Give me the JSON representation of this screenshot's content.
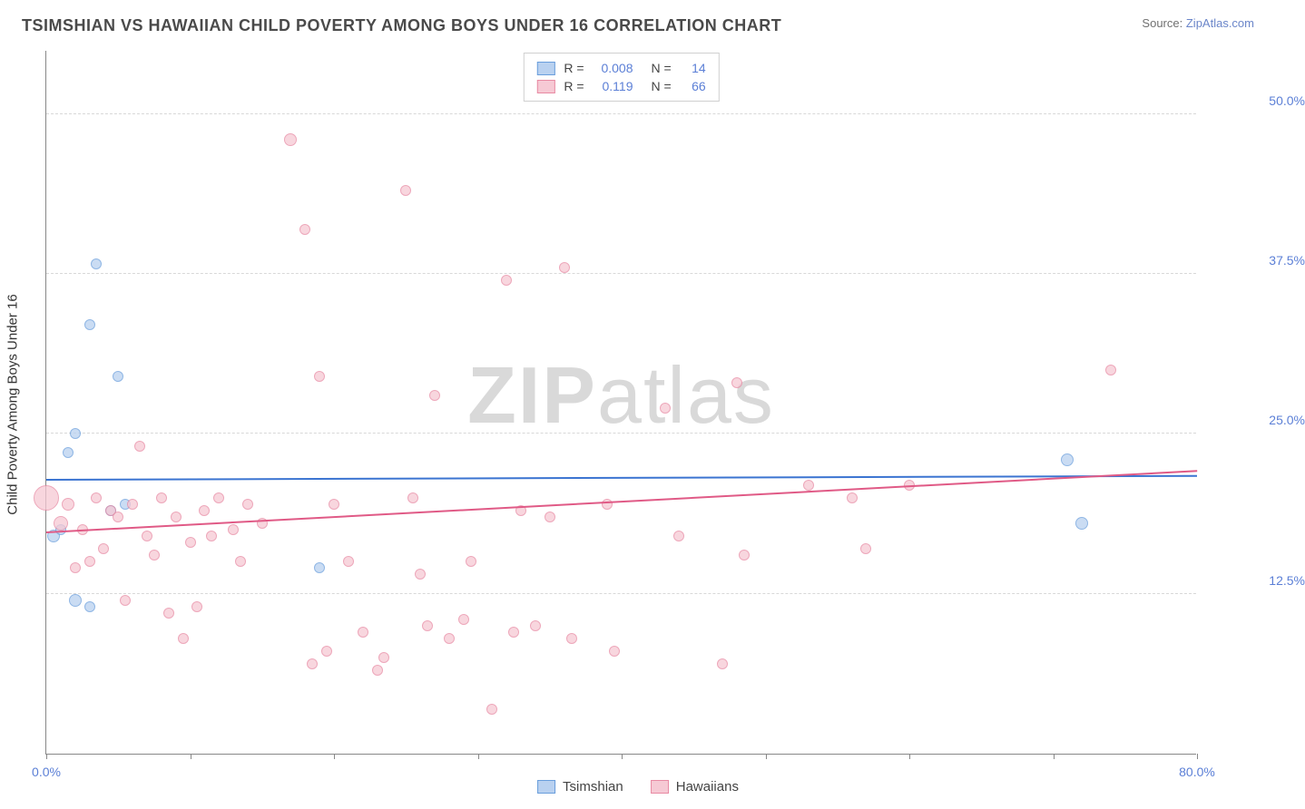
{
  "title": "TSIMSHIAN VS HAWAIIAN CHILD POVERTY AMONG BOYS UNDER 16 CORRELATION CHART",
  "source_label": "Source:",
  "source_name": "ZipAtlas.com",
  "watermark_bold": "ZIP",
  "watermark_thin": "atlas",
  "yaxis_title": "Child Poverty Among Boys Under 16",
  "chart": {
    "type": "scatter",
    "background_color": "#ffffff",
    "grid_color": "#d8d8d8",
    "axis_color": "#888888",
    "tick_label_color": "#5b7fd6",
    "xlim": [
      0,
      80
    ],
    "ylim": [
      0,
      55
    ],
    "y_gridlines": [
      12.5,
      25.0,
      37.5,
      50.0
    ],
    "y_labels": [
      "12.5%",
      "25.0%",
      "37.5%",
      "50.0%"
    ],
    "x_ticks": [
      0,
      10,
      20,
      30,
      40,
      50,
      60,
      70,
      80
    ],
    "x_label_min": "0.0%",
    "x_label_max": "80.0%",
    "series": [
      {
        "name": "Tsimshian",
        "fill": "#b9d1f0",
        "stroke": "#6a9edc",
        "trend_color": "#3b74d1",
        "R": "0.008",
        "N": "14",
        "trend": {
          "y_at_x0": 21.3,
          "y_at_x80": 21.6
        },
        "points": [
          {
            "x": 0.5,
            "y": 17,
            "r": 7
          },
          {
            "x": 1,
            "y": 17.5,
            "r": 6
          },
          {
            "x": 1.5,
            "y": 23.5,
            "r": 6
          },
          {
            "x": 2,
            "y": 25,
            "r": 6
          },
          {
            "x": 3,
            "y": 33.5,
            "r": 6
          },
          {
            "x": 3.5,
            "y": 38.3,
            "r": 6
          },
          {
            "x": 2,
            "y": 12,
            "r": 7
          },
          {
            "x": 3,
            "y": 11.5,
            "r": 6
          },
          {
            "x": 5,
            "y": 29.5,
            "r": 6
          },
          {
            "x": 5.5,
            "y": 19.5,
            "r": 6
          },
          {
            "x": 19,
            "y": 14.5,
            "r": 6
          },
          {
            "x": 71,
            "y": 23,
            "r": 7
          },
          {
            "x": 72,
            "y": 18,
            "r": 7
          },
          {
            "x": 4.5,
            "y": 19,
            "r": 6
          }
        ]
      },
      {
        "name": "Hawaiians",
        "fill": "#f6c9d4",
        "stroke": "#e88aa3",
        "trend_color": "#e05a86",
        "R": "0.119",
        "N": "66",
        "trend": {
          "y_at_x0": 17.2,
          "y_at_x80": 22.0
        },
        "points": [
          {
            "x": 0,
            "y": 20,
            "r": 14
          },
          {
            "x": 1,
            "y": 18,
            "r": 8
          },
          {
            "x": 1.5,
            "y": 19.5,
            "r": 7
          },
          {
            "x": 2,
            "y": 14.5,
            "r": 6
          },
          {
            "x": 2.5,
            "y": 17.5,
            "r": 6
          },
          {
            "x": 3,
            "y": 15,
            "r": 6
          },
          {
            "x": 3.5,
            "y": 20,
            "r": 6
          },
          {
            "x": 4,
            "y": 16,
            "r": 6
          },
          {
            "x": 4.5,
            "y": 19,
            "r": 6
          },
          {
            "x": 5,
            "y": 18.5,
            "r": 6
          },
          {
            "x": 5.5,
            "y": 12,
            "r": 6
          },
          {
            "x": 6,
            "y": 19.5,
            "r": 6
          },
          {
            "x": 6.5,
            "y": 24,
            "r": 6
          },
          {
            "x": 7,
            "y": 17,
            "r": 6
          },
          {
            "x": 7.5,
            "y": 15.5,
            "r": 6
          },
          {
            "x": 8,
            "y": 20,
            "r": 6
          },
          {
            "x": 8.5,
            "y": 11,
            "r": 6
          },
          {
            "x": 9,
            "y": 18.5,
            "r": 6
          },
          {
            "x": 9.5,
            "y": 9,
            "r": 6
          },
          {
            "x": 10,
            "y": 16.5,
            "r": 6
          },
          {
            "x": 10.5,
            "y": 11.5,
            "r": 6
          },
          {
            "x": 11,
            "y": 19,
            "r": 6
          },
          {
            "x": 11.5,
            "y": 17,
            "r": 6
          },
          {
            "x": 12,
            "y": 20,
            "r": 6
          },
          {
            "x": 13,
            "y": 17.5,
            "r": 6
          },
          {
            "x": 13.5,
            "y": 15,
            "r": 6
          },
          {
            "x": 14,
            "y": 19.5,
            "r": 6
          },
          {
            "x": 15,
            "y": 18,
            "r": 6
          },
          {
            "x": 17,
            "y": 48,
            "r": 7
          },
          {
            "x": 18,
            "y": 41,
            "r": 6
          },
          {
            "x": 18.5,
            "y": 7,
            "r": 6
          },
          {
            "x": 19,
            "y": 29.5,
            "r": 6
          },
          {
            "x": 19.5,
            "y": 8,
            "r": 6
          },
          {
            "x": 20,
            "y": 19.5,
            "r": 6
          },
          {
            "x": 21,
            "y": 15,
            "r": 6
          },
          {
            "x": 22,
            "y": 9.5,
            "r": 6
          },
          {
            "x": 23,
            "y": 6.5,
            "r": 6
          },
          {
            "x": 23.5,
            "y": 7.5,
            "r": 6
          },
          {
            "x": 25,
            "y": 44,
            "r": 6
          },
          {
            "x": 25.5,
            "y": 20,
            "r": 6
          },
          {
            "x": 26,
            "y": 14,
            "r": 6
          },
          {
            "x": 26.5,
            "y": 10,
            "r": 6
          },
          {
            "x": 27,
            "y": 28,
            "r": 6
          },
          {
            "x": 28,
            "y": 9,
            "r": 6
          },
          {
            "x": 29,
            "y": 10.5,
            "r": 6
          },
          {
            "x": 29.5,
            "y": 15,
            "r": 6
          },
          {
            "x": 31,
            "y": 3.5,
            "r": 6
          },
          {
            "x": 32,
            "y": 37,
            "r": 6
          },
          {
            "x": 32.5,
            "y": 9.5,
            "r": 6
          },
          {
            "x": 33,
            "y": 19,
            "r": 6
          },
          {
            "x": 34,
            "y": 10,
            "r": 6
          },
          {
            "x": 35,
            "y": 18.5,
            "r": 6
          },
          {
            "x": 36,
            "y": 38,
            "r": 6
          },
          {
            "x": 36.5,
            "y": 9,
            "r": 6
          },
          {
            "x": 39,
            "y": 19.5,
            "r": 6
          },
          {
            "x": 39.5,
            "y": 8,
            "r": 6
          },
          {
            "x": 43,
            "y": 27,
            "r": 6
          },
          {
            "x": 44,
            "y": 17,
            "r": 6
          },
          {
            "x": 47,
            "y": 7,
            "r": 6
          },
          {
            "x": 48,
            "y": 29,
            "r": 6
          },
          {
            "x": 48.5,
            "y": 15.5,
            "r": 6
          },
          {
            "x": 53,
            "y": 21,
            "r": 6
          },
          {
            "x": 56,
            "y": 20,
            "r": 6
          },
          {
            "x": 57,
            "y": 16,
            "r": 6
          },
          {
            "x": 60,
            "y": 21,
            "r": 6
          },
          {
            "x": 74,
            "y": 30,
            "r": 6
          }
        ]
      }
    ]
  },
  "legend_top": {
    "r_label": "R =",
    "n_label": "N ="
  },
  "legend_bottom": [
    {
      "label": "Tsimshian",
      "fill": "#b9d1f0",
      "stroke": "#6a9edc"
    },
    {
      "label": "Hawaiians",
      "fill": "#f6c9d4",
      "stroke": "#e88aa3"
    }
  ]
}
